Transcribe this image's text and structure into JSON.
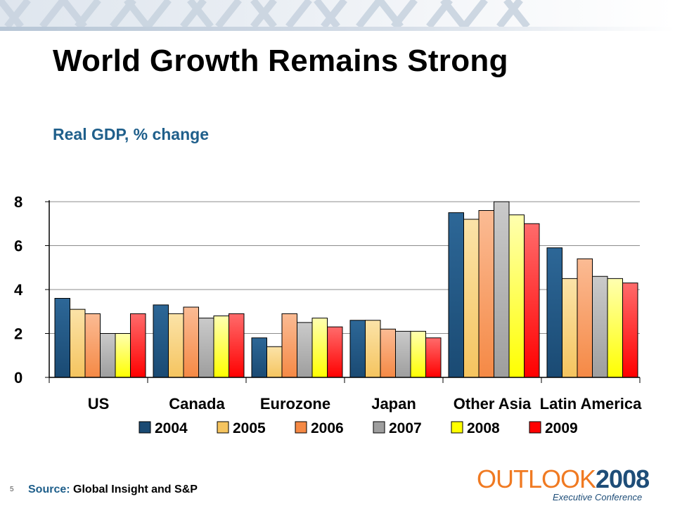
{
  "slide": {
    "title": "World Growth Remains Strong",
    "subtitle": "Real GDP, % change",
    "page_number": "5",
    "source_label": "Source:",
    "source_text": " Global Insight and S&P",
    "logo_word_part1": "OUTLOOK",
    "logo_word_part2": "2008",
    "logo_subtitle": "Executive Conference"
  },
  "chart_data": {
    "type": "bar",
    "categories": [
      "US",
      "Canada",
      "Eurozone",
      "Japan",
      "Other Asia",
      "Latin America"
    ],
    "series": [
      {
        "name": "2004",
        "values": [
          3.6,
          3.3,
          1.8,
          2.6,
          7.5,
          5.9
        ]
      },
      {
        "name": "2005",
        "values": [
          3.1,
          2.9,
          1.4,
          2.6,
          7.2,
          4.5
        ]
      },
      {
        "name": "2006",
        "values": [
          2.9,
          3.2,
          2.9,
          2.2,
          7.6,
          5.4
        ]
      },
      {
        "name": "2007",
        "values": [
          2.0,
          2.7,
          2.5,
          2.1,
          8.0,
          4.6
        ]
      },
      {
        "name": "2008",
        "values": [
          2.0,
          2.8,
          2.7,
          2.1,
          7.4,
          4.5
        ]
      },
      {
        "name": "2009",
        "values": [
          2.9,
          2.9,
          2.3,
          1.8,
          7.0,
          4.3
        ]
      }
    ],
    "ylim": [
      0,
      8
    ],
    "yticks": [
      0,
      2,
      4,
      6,
      8
    ],
    "grid": true,
    "legend_position": "bottom",
    "colors": {
      "2004": "#1a4a73",
      "2005": "#f5c45f",
      "2006": "#f58945",
      "2007": "#9e9e9e",
      "2008": "#ffff00",
      "2009": "#ff0000"
    },
    "highlight_colors": {
      "2004": "#2d6797",
      "2005": "#fbe3a8",
      "2006": "#fbbb94",
      "2007": "#cacaca",
      "2008": "#ffffb0",
      "2009": "#ff6b6b"
    },
    "xlabel": "",
    "ylabel": ""
  }
}
